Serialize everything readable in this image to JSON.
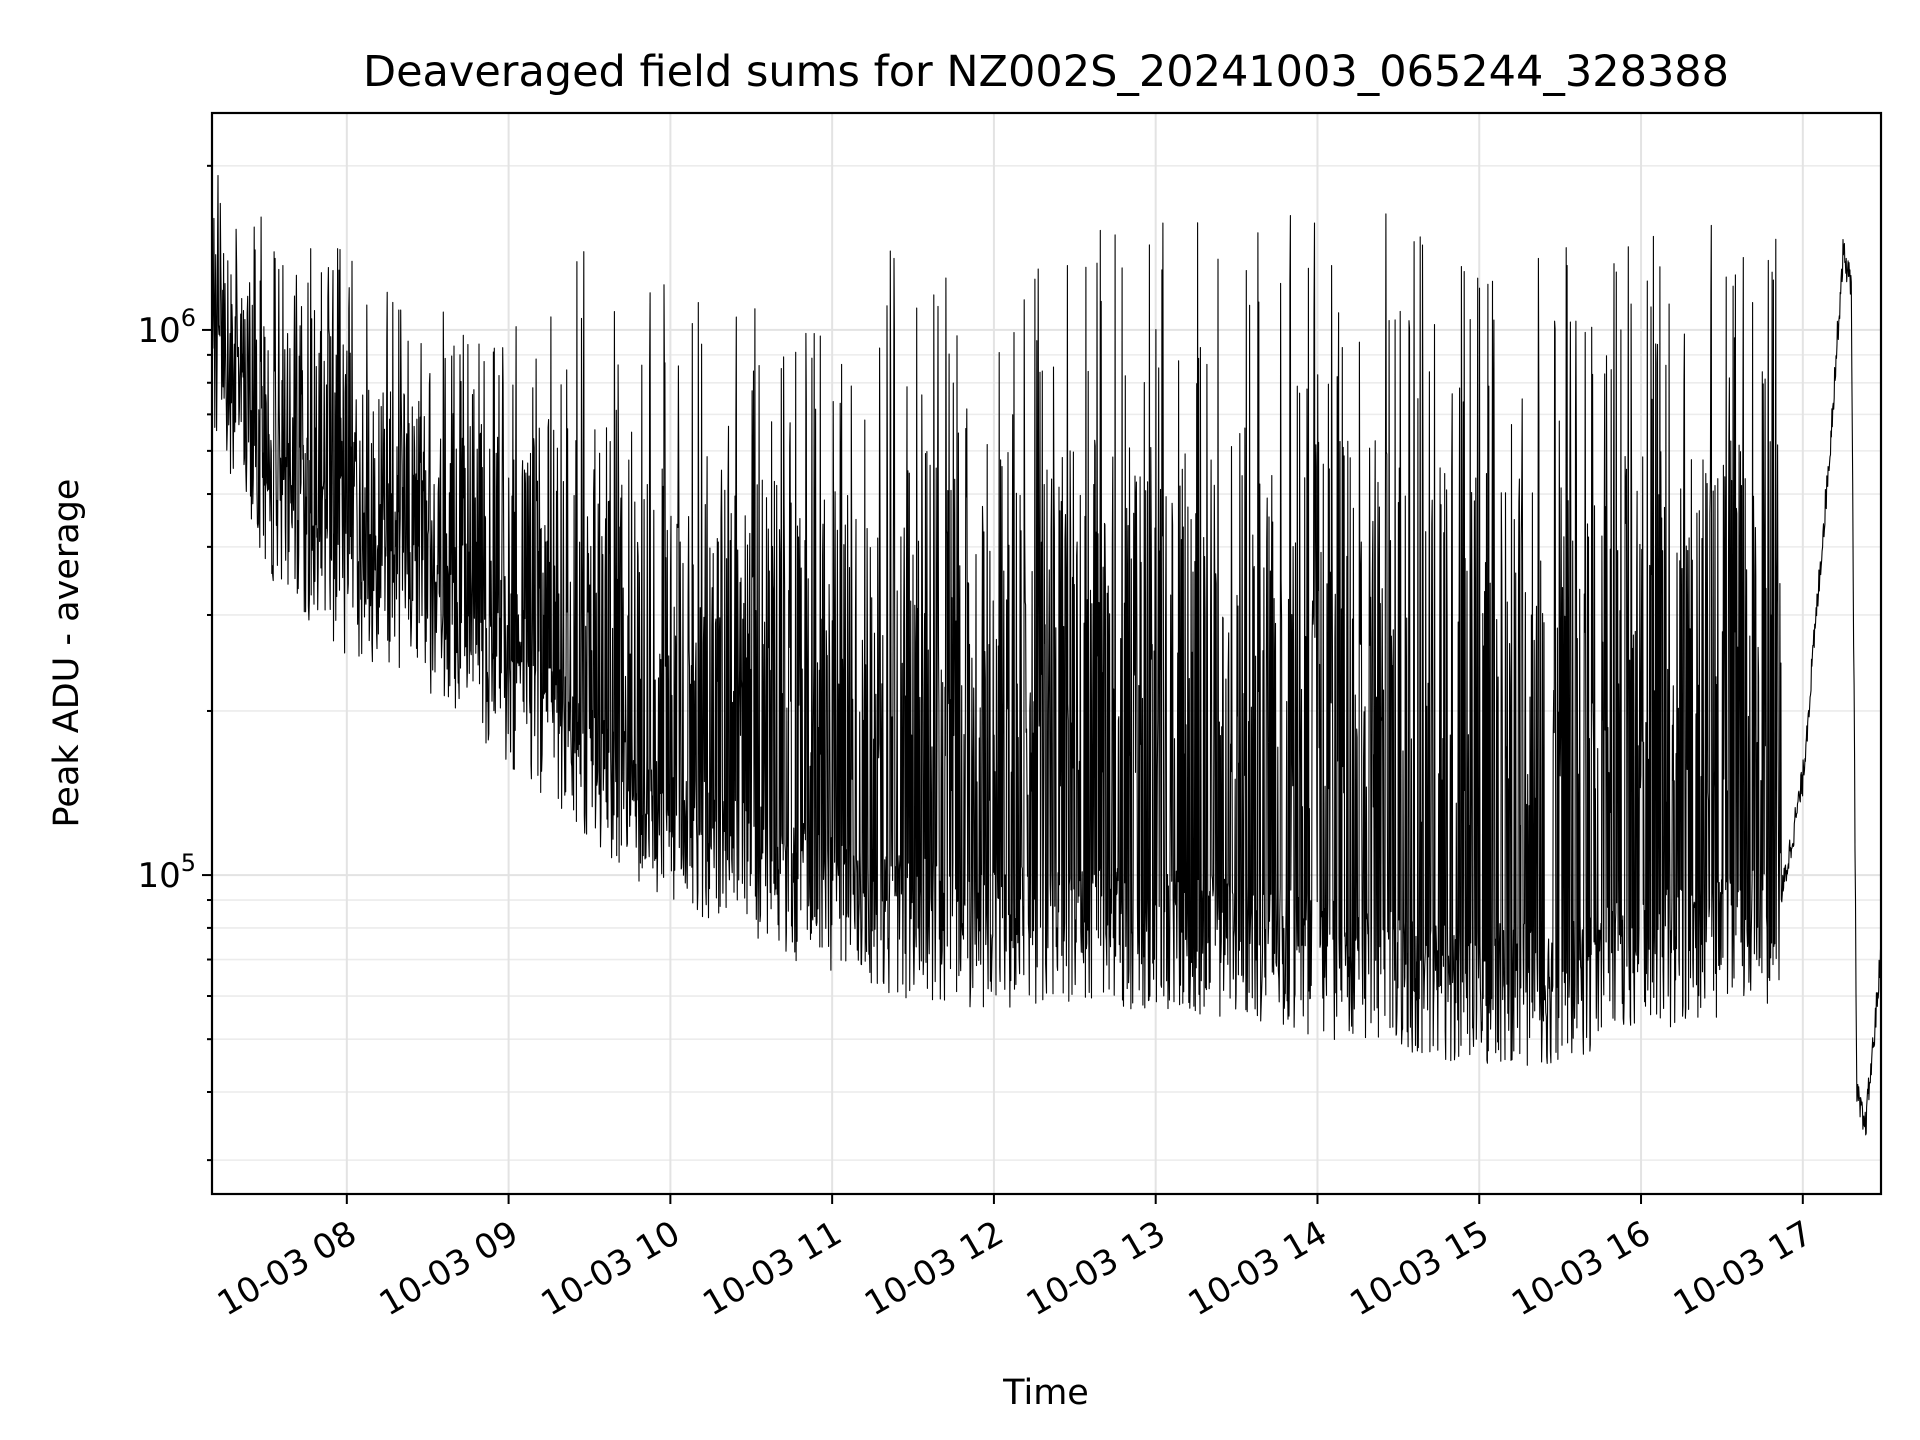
{
  "chart_data": {
    "type": "line",
    "title": "Deaveraged field sums for NZ002S_20241003_065244_328388",
    "xlabel": "Time",
    "ylabel": "Peak ADU - average",
    "y_scale": "log",
    "grid": true,
    "legend": "none",
    "xlim": [
      "2024-10-03 07:10",
      "2024-10-03 17:29"
    ],
    "ylim": [
      26000,
      2500000
    ],
    "x_ticks": [
      {
        "value": "2024-10-03 08:00",
        "label": "10-03 08"
      },
      {
        "value": "2024-10-03 09:00",
        "label": "10-03 09"
      },
      {
        "value": "2024-10-03 10:00",
        "label": "10-03 10"
      },
      {
        "value": "2024-10-03 11:00",
        "label": "10-03 11"
      },
      {
        "value": "2024-10-03 12:00",
        "label": "10-03 12"
      },
      {
        "value": "2024-10-03 13:00",
        "label": "10-03 13"
      },
      {
        "value": "2024-10-03 14:00",
        "label": "10-03 14"
      },
      {
        "value": "2024-10-03 15:00",
        "label": "10-03 15"
      },
      {
        "value": "2024-10-03 16:00",
        "label": "10-03 16"
      },
      {
        "value": "2024-10-03 17:00",
        "label": "10-03 17"
      }
    ],
    "y_ticks": [
      {
        "value": 100000,
        "base": "10",
        "exp": "5"
      },
      {
        "value": 1000000,
        "base": "10",
        "exp": "6"
      }
    ],
    "series_color": "#000000",
    "series": [
      {
        "name": "",
        "x": [
          "2024-10-03 07:10",
          "2024-10-03 07:20",
          "2024-10-03 07:30",
          "2024-10-03 07:40",
          "2024-10-03 07:50",
          "2024-10-03 08:00",
          "2024-10-03 08:15",
          "2024-10-03 08:30",
          "2024-10-03 08:45",
          "2024-10-03 09:00",
          "2024-10-03 09:15",
          "2024-10-03 09:30",
          "2024-10-03 09:45",
          "2024-10-03 10:00",
          "2024-10-03 10:30",
          "2024-10-03 11:00",
          "2024-10-03 11:30",
          "2024-10-03 12:00",
          "2024-10-03 12:30",
          "2024-10-03 13:00",
          "2024-10-03 13:30",
          "2024-10-03 14:00",
          "2024-10-03 14:30",
          "2024-10-03 15:00",
          "2024-10-03 15:30",
          "2024-10-03 16:00",
          "2024-10-03 16:30",
          "2024-10-03 16:50",
          "2024-10-03 17:00",
          "2024-10-03 17:10",
          "2024-10-03 17:15",
          "2024-10-03 17:18",
          "2024-10-03 17:20",
          "2024-10-03 17:23",
          "2024-10-03 17:26",
          "2024-10-03 17:29"
        ],
        "baseline": [
          900000,
          700000,
          500000,
          420000,
          380000,
          350000,
          320000,
          300000,
          260000,
          220000,
          190000,
          160000,
          140000,
          120000,
          105000,
          90000,
          82000,
          78000,
          80000,
          78000,
          75000,
          70000,
          65000,
          62000,
          62000,
          70000,
          75000,
          80000,
          150000,
          600000,
          1400000,
          1200000,
          40000,
          34000,
          48000,
          72000
        ],
        "peaks": [
          2100000,
          1700000,
          1600000,
          1800000,
          1700000,
          1500000,
          1200000,
          1100000,
          1050000,
          1000000,
          1200000,
          1500000,
          1400000,
          1300000,
          1100000,
          1050000,
          1600000,
          1000000,
          1700000,
          1600000,
          1700000,
          1600000,
          1700000,
          1400000,
          1500000,
          1500000,
          1600000,
          1500000,
          null,
          null,
          null,
          null,
          null,
          null,
          null,
          null
        ]
      }
    ]
  }
}
